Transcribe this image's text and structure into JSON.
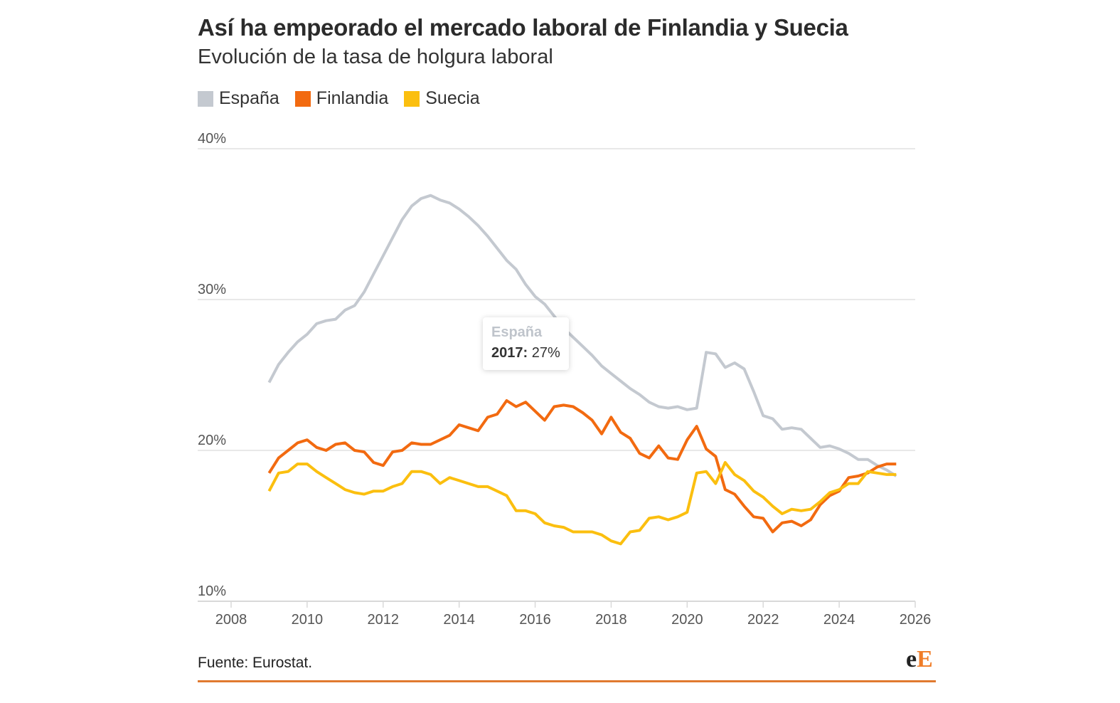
{
  "title": "Así ha empeorado el mercado laboral de Finlandia y Suecia",
  "subtitle": "Evolución de la tasa de holgura laboral",
  "legend": [
    {
      "label": "España",
      "color": "#c4c9d0"
    },
    {
      "label": "Finlandia",
      "color": "#f26a10"
    },
    {
      "label": "Suecia",
      "color": "#fbbf0f"
    }
  ],
  "tooltip": {
    "series": "España",
    "year": "2017:",
    "value": "27%"
  },
  "source": "Fuente: Eurostat.",
  "logo": {
    "e": "e",
    "E": "E"
  },
  "chart_data": {
    "type": "line",
    "title": "Así ha empeorado el mercado laboral de Finlandia y Suecia",
    "subtitle": "Evolución de la tasa de holgura laboral",
    "xlabel": "",
    "ylabel": "",
    "xlim": [
      2008,
      2026
    ],
    "ylim": [
      10,
      40
    ],
    "xticks": [
      "2008",
      "2010",
      "2012",
      "2014",
      "2016",
      "2018",
      "2020",
      "2022",
      "2024",
      "2026"
    ],
    "yticks": [
      "10%",
      "20%",
      "30%",
      "40%"
    ],
    "grid": true,
    "legend_position": "top-left",
    "x_start": 2009.0,
    "x_step": 0.25,
    "series": [
      {
        "name": "España",
        "color": "#c4c9d0",
        "values": [
          24.5,
          25.7,
          26.5,
          27.2,
          27.7,
          28.4,
          28.6,
          28.7,
          29.3,
          29.6,
          30.5,
          31.7,
          32.9,
          34.1,
          35.3,
          36.2,
          36.7,
          36.9,
          36.6,
          36.4,
          36.0,
          35.5,
          34.9,
          34.2,
          33.4,
          32.6,
          32.0,
          31.0,
          30.2,
          29.7,
          28.9,
          28.1,
          27.5,
          26.9,
          26.3,
          25.6,
          25.1,
          24.6,
          24.1,
          23.7,
          23.2,
          22.9,
          22.8,
          22.9,
          22.7,
          22.8,
          26.5,
          26.4,
          25.5,
          25.8,
          25.4,
          23.9,
          22.3,
          22.1,
          21.4,
          21.5,
          21.4,
          20.8,
          20.2,
          20.3,
          20.1,
          19.8,
          19.4,
          19.4,
          19.0,
          18.7,
          18.3
        ]
      },
      {
        "name": "Finlandia",
        "color": "#f26a10",
        "values": [
          18.5,
          19.5,
          20.0,
          20.5,
          20.7,
          20.2,
          20.0,
          20.4,
          20.5,
          20.0,
          19.9,
          19.2,
          19.0,
          19.9,
          20.0,
          20.5,
          20.4,
          20.4,
          20.7,
          21.0,
          21.7,
          21.5,
          21.3,
          22.2,
          22.4,
          23.3,
          22.9,
          23.2,
          22.6,
          22.0,
          22.9,
          23.0,
          22.9,
          22.5,
          22.0,
          21.1,
          22.2,
          21.2,
          20.8,
          19.8,
          19.5,
          20.3,
          19.5,
          19.4,
          20.7,
          21.6,
          20.1,
          19.6,
          17.4,
          17.1,
          16.3,
          15.6,
          15.5,
          14.6,
          15.2,
          15.3,
          15.0,
          15.4,
          16.4,
          17.0,
          17.3,
          18.2,
          18.3,
          18.5,
          18.9,
          19.1,
          19.1
        ]
      },
      {
        "name": "Suecia",
        "color": "#fbbf0f",
        "values": [
          17.3,
          18.5,
          18.6,
          19.1,
          19.1,
          18.6,
          18.2,
          17.8,
          17.4,
          17.2,
          17.1,
          17.3,
          17.3,
          17.6,
          17.8,
          18.6,
          18.6,
          18.4,
          17.8,
          18.2,
          18.0,
          17.8,
          17.6,
          17.6,
          17.3,
          17.0,
          16.0,
          16.0,
          15.8,
          15.2,
          15.0,
          14.9,
          14.6,
          14.6,
          14.6,
          14.4,
          14.0,
          13.8,
          14.6,
          14.7,
          15.5,
          15.6,
          15.4,
          15.6,
          15.9,
          18.5,
          18.6,
          17.8,
          19.2,
          18.4,
          18.0,
          17.3,
          16.9,
          16.3,
          15.8,
          16.1,
          16.0,
          16.1,
          16.6,
          17.2,
          17.4,
          17.8,
          17.8,
          18.6,
          18.5,
          18.4,
          18.4
        ]
      }
    ]
  }
}
